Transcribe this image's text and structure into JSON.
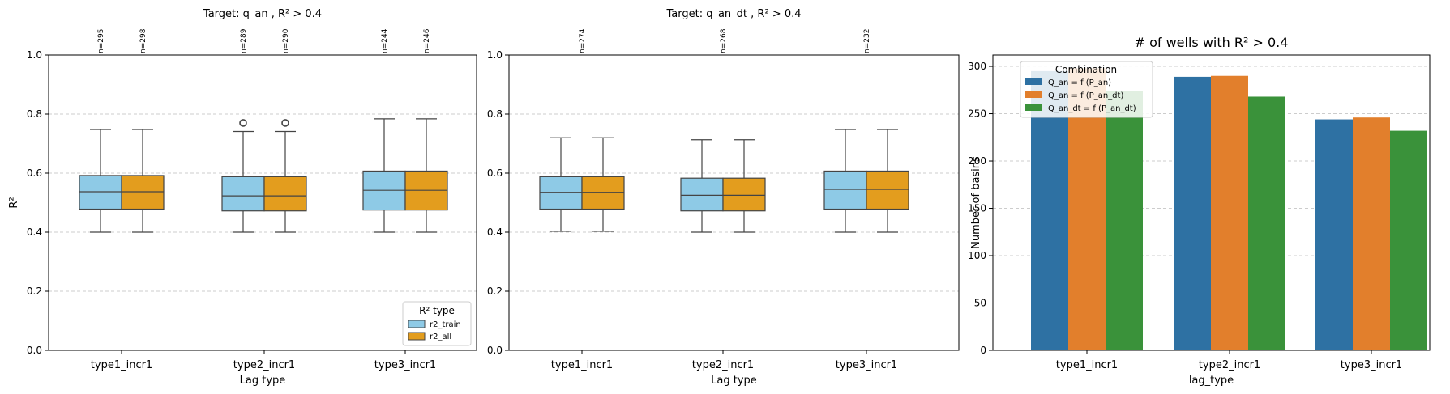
{
  "chart_data": [
    {
      "type": "box",
      "title": "Target: q_an , R² > 0.4",
      "xlabel": "Lag type",
      "ylabel": "R²",
      "ylim": [
        0,
        1.0
      ],
      "yticks": [
        0.0,
        0.2,
        0.4,
        0.6,
        0.8,
        1.0
      ],
      "ytick_labels": [
        "0.0",
        "0.2",
        "0.4",
        "0.6",
        "0.8",
        "1.0"
      ],
      "grid": "y-dashed",
      "categories": [
        "type1_incr1",
        "type2_incr1",
        "type3_incr1"
      ],
      "legend": {
        "title": "R² type",
        "placement": "lower-right"
      },
      "series": [
        {
          "name": "r2_train",
          "color": "#8ecae6",
          "boxes": [
            {
              "whislo": 0.4,
              "q1": 0.478,
              "med": 0.537,
              "q3": 0.592,
              "whishi": 0.748,
              "fliers": []
            },
            {
              "whislo": 0.4,
              "q1": 0.472,
              "med": 0.523,
              "q3": 0.588,
              "whishi": 0.741,
              "fliers": [
                0.77
              ]
            },
            {
              "whislo": 0.4,
              "q1": 0.475,
              "med": 0.542,
              "q3": 0.607,
              "whishi": 0.784,
              "fliers": []
            }
          ],
          "counts": [
            "n=295",
            "n=289",
            "n=244"
          ]
        },
        {
          "name": "r2_all",
          "color": "#e39d1e",
          "boxes": [
            {
              "whislo": 0.4,
              "q1": 0.478,
              "med": 0.537,
              "q3": 0.592,
              "whishi": 0.748,
              "fliers": []
            },
            {
              "whislo": 0.4,
              "q1": 0.472,
              "med": 0.523,
              "q3": 0.588,
              "whishi": 0.741,
              "fliers": [
                0.77
              ]
            },
            {
              "whislo": 0.4,
              "q1": 0.475,
              "med": 0.542,
              "q3": 0.607,
              "whishi": 0.784,
              "fliers": []
            }
          ],
          "counts": [
            "n=298",
            "n=290",
            "n=246"
          ]
        }
      ]
    },
    {
      "type": "box",
      "title": "Target: q_an_dt , R² > 0.4",
      "xlabel": "Lag type",
      "ylabel": "",
      "ylim": [
        0,
        1.0
      ],
      "yticks": [
        0.0,
        0.2,
        0.4,
        0.6,
        0.8,
        1.0
      ],
      "ytick_labels": [
        "0.0",
        "0.2",
        "0.4",
        "0.6",
        "0.8",
        "1.0"
      ],
      "grid": "y-dashed",
      "categories": [
        "type1_incr1",
        "type2_incr1",
        "type3_incr1"
      ],
      "counts": [
        "n=274",
        "n=268",
        "n=232"
      ],
      "series": [
        {
          "name": "r2_train",
          "color": "#8ecae6",
          "boxes": [
            {
              "whislo": 0.403,
              "q1": 0.478,
              "med": 0.535,
              "q3": 0.588,
              "whishi": 0.72,
              "fliers": []
            },
            {
              "whislo": 0.4,
              "q1": 0.472,
              "med": 0.525,
              "q3": 0.583,
              "whishi": 0.713,
              "fliers": []
            },
            {
              "whislo": 0.4,
              "q1": 0.478,
              "med": 0.545,
              "q3": 0.607,
              "whishi": 0.748,
              "fliers": []
            }
          ]
        },
        {
          "name": "r2_all",
          "color": "#e39d1e",
          "boxes": [
            {
              "whislo": 0.403,
              "q1": 0.478,
              "med": 0.535,
              "q3": 0.588,
              "whishi": 0.72,
              "fliers": []
            },
            {
              "whislo": 0.4,
              "q1": 0.472,
              "med": 0.525,
              "q3": 0.583,
              "whishi": 0.713,
              "fliers": []
            },
            {
              "whislo": 0.4,
              "q1": 0.478,
              "med": 0.545,
              "q3": 0.607,
              "whishi": 0.748,
              "fliers": []
            }
          ]
        }
      ]
    },
    {
      "type": "bar",
      "title": "# of wells with R² > 0.4",
      "xlabel": "lag_type",
      "ylabel": "Number of basins",
      "ylim": [
        0,
        312
      ],
      "yticks": [
        0,
        50,
        100,
        150,
        200,
        250,
        300
      ],
      "ytick_labels": [
        "0",
        "50",
        "100",
        "150",
        "200",
        "250",
        "300"
      ],
      "grid": "y-dashed",
      "categories": [
        "type1_incr1",
        "type2_incr1",
        "type3_incr1"
      ],
      "legend": {
        "title": "Combination",
        "placement": "upper-left"
      },
      "series": [
        {
          "name": "Q_an = f (P_an)",
          "color": "#2e71a3",
          "values": [
            295,
            289,
            244
          ]
        },
        {
          "name": "Q_an = f (P_an_dt)",
          "color": "#e27f2c",
          "values": [
            298,
            290,
            246
          ]
        },
        {
          "name": "Q_an_dt = f (P_an_dt)",
          "color": "#3a923a",
          "values": [
            274,
            268,
            232
          ]
        }
      ]
    }
  ]
}
